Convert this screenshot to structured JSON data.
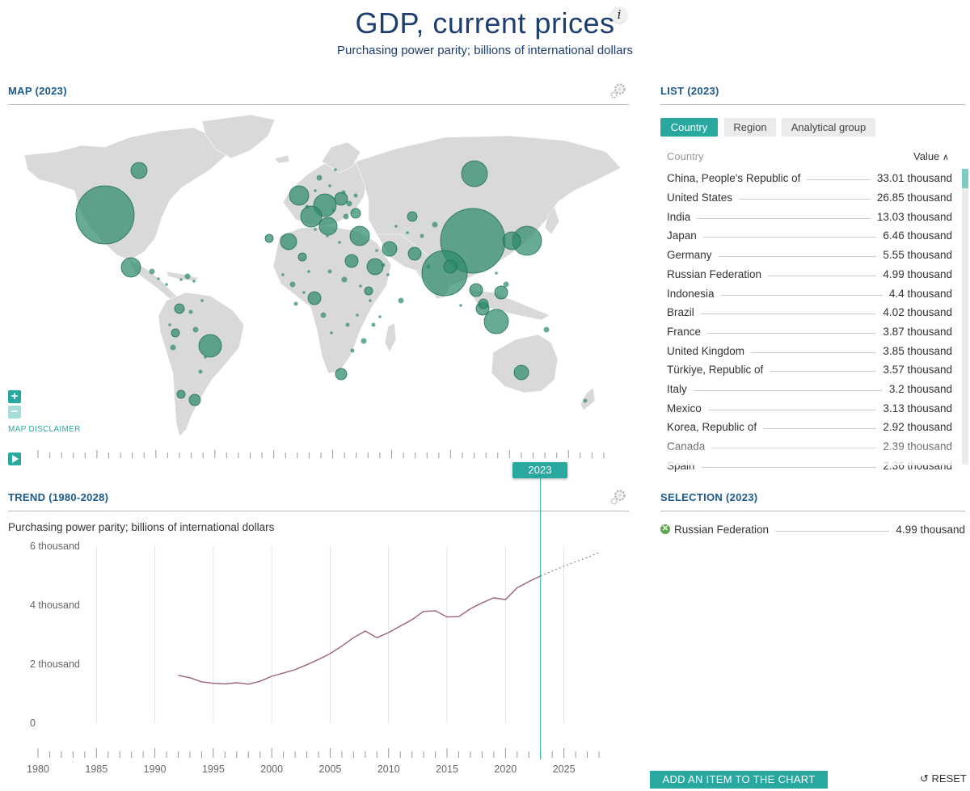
{
  "header": {
    "title": "GDP, current prices",
    "info_icon": "i",
    "subtitle": "Purchasing power parity; billions of international dollars"
  },
  "map": {
    "title": "MAP (2023)",
    "disclaimer": "MAP DISCLAIMER",
    "zoom_in": "+",
    "zoom_out": "−",
    "bubble_color": "#2e8b6b",
    "land_color": "#d9d9d9"
  },
  "timeline": {
    "selected_year": "2023"
  },
  "list": {
    "title": "LIST (2023)",
    "tabs": [
      "Country",
      "Region",
      "Analytical group"
    ],
    "active_tab": "Country",
    "col_country": "Country",
    "col_value": "Value",
    "rows": [
      {
        "name": "China, People's Republic of",
        "value": "33.01 thousand"
      },
      {
        "name": "United States",
        "value": "26.85 thousand"
      },
      {
        "name": "India",
        "value": "13.03 thousand"
      },
      {
        "name": "Japan",
        "value": "6.46 thousand"
      },
      {
        "name": "Germany",
        "value": "5.55 thousand"
      },
      {
        "name": "Russian Federation",
        "value": "4.99 thousand"
      },
      {
        "name": "Indonesia",
        "value": "4.4 thousand"
      },
      {
        "name": "Brazil",
        "value": "4.02 thousand"
      },
      {
        "name": "France",
        "value": "3.87 thousand"
      },
      {
        "name": "United Kingdom",
        "value": "3.85 thousand"
      },
      {
        "name": "Türkiye, Republic of",
        "value": "3.57 thousand"
      },
      {
        "name": "Italy",
        "value": "3.2 thousand"
      },
      {
        "name": "Mexico",
        "value": "3.13 thousand"
      },
      {
        "name": "Korea, Republic of",
        "value": "2.92 thousand"
      },
      {
        "name": "Canada",
        "value": "2.39 thousand"
      },
      {
        "name": "Spain",
        "value": "2.36 thousand"
      }
    ]
  },
  "selection": {
    "title": "SELECTION (2023)",
    "items": [
      {
        "name": "Russian Federation",
        "value": "4.99 thousand"
      }
    ]
  },
  "buttons": {
    "add_item": "ADD AN ITEM TO THE CHART",
    "reset": "RESET"
  },
  "trend": {
    "title": "TREND (1980-2028)",
    "caption": "Purchasing power parity; billions of international dollars"
  },
  "chart_data": {
    "type": "line",
    "title": "TREND (1980-2028)",
    "ylabel": "Purchasing power parity; billions of international dollars",
    "xlim": [
      1980,
      2028
    ],
    "ylim": [
      0,
      6000
    ],
    "x_ticks": [
      1980,
      1985,
      1990,
      1995,
      2000,
      2005,
      2010,
      2015,
      2020,
      2025
    ],
    "y_ticks": [
      0,
      2000,
      4000,
      6000
    ],
    "y_tick_labels": [
      "0",
      "2 thousand",
      "4 thousand",
      "6 thousand"
    ],
    "grid": true,
    "selected_year": 2023,
    "series": [
      {
        "name": "Russian Federation",
        "color": "#9c6470",
        "x": [
          1992,
          1993,
          1994,
          1995,
          1996,
          1997,
          1998,
          1999,
          2000,
          2001,
          2002,
          2003,
          2004,
          2005,
          2006,
          2007,
          2008,
          2009,
          2010,
          2011,
          2012,
          2013,
          2014,
          2015,
          2016,
          2017,
          2018,
          2019,
          2020,
          2021,
          2022,
          2023
        ],
        "y": [
          1620,
          1540,
          1400,
          1350,
          1330,
          1370,
          1320,
          1420,
          1590,
          1700,
          1810,
          1980,
          2160,
          2360,
          2610,
          2900,
          3120,
          2900,
          3070,
          3290,
          3510,
          3790,
          3810,
          3600,
          3610,
          3880,
          4080,
          4250,
          4190,
          4590,
          4800,
          4990
        ]
      },
      {
        "name": "Russian Federation (projection)",
        "color": "#888888",
        "dashed": true,
        "x": [
          2023,
          2024,
          2025,
          2026,
          2027,
          2028
        ],
        "y": [
          4990,
          5160,
          5320,
          5470,
          5620,
          5780
        ]
      }
    ]
  },
  "map_bubbles": [
    {
      "country": "United States",
      "value": 26850
    },
    {
      "country": "China, People's Republic of",
      "value": 33010
    },
    {
      "country": "India",
      "value": 13030
    },
    {
      "country": "Japan",
      "value": 6460
    },
    {
      "country": "Russian Federation",
      "value": 4990
    },
    {
      "country": "Brazil",
      "value": 4020
    },
    {
      "country": "Indonesia",
      "value": 4400
    }
  ]
}
